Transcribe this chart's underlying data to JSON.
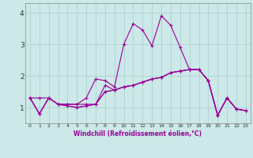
{
  "xlabel": "Windchill (Refroidissement éolien,°C)",
  "x": [
    0,
    1,
    2,
    3,
    4,
    5,
    6,
    7,
    8,
    9,
    10,
    11,
    12,
    13,
    14,
    15,
    16,
    17,
    18,
    19,
    20,
    21,
    22,
    23
  ],
  "lines": [
    [
      1.3,
      0.8,
      1.3,
      1.1,
      1.05,
      1.0,
      1.05,
      1.1,
      1.5,
      1.55,
      1.65,
      1.7,
      1.8,
      1.9,
      1.95,
      2.1,
      2.15,
      2.2,
      2.2,
      1.85,
      0.75,
      1.3,
      0.95,
      0.9
    ],
    [
      1.3,
      1.3,
      1.3,
      1.1,
      1.05,
      1.0,
      1.05,
      1.1,
      1.5,
      1.55,
      1.65,
      1.7,
      1.8,
      1.9,
      1.95,
      2.1,
      2.15,
      2.2,
      2.2,
      1.85,
      0.75,
      1.3,
      0.95,
      0.9
    ],
    [
      1.3,
      0.8,
      1.3,
      1.1,
      1.1,
      1.1,
      1.1,
      1.1,
      1.7,
      1.55,
      1.65,
      1.7,
      1.8,
      1.9,
      1.95,
      2.1,
      2.15,
      2.2,
      2.2,
      1.85,
      0.75,
      1.3,
      0.95,
      0.9
    ],
    [
      1.3,
      0.8,
      1.3,
      1.1,
      1.1,
      1.1,
      1.3,
      1.9,
      1.85,
      1.65,
      3.0,
      3.65,
      3.45,
      2.95,
      3.9,
      3.6,
      2.9,
      2.2,
      2.2,
      1.85,
      0.75,
      1.3,
      0.95,
      0.9
    ]
  ],
  "line_color": "#990099",
  "bg_color": "#cce8e8",
  "grid_color": "#aacccc",
  "ylim": [
    0.5,
    4.3
  ],
  "yticks": [
    1,
    2,
    3,
    4
  ],
  "xticks": [
    0,
    1,
    2,
    3,
    4,
    5,
    6,
    7,
    8,
    9,
    10,
    11,
    12,
    13,
    14,
    15,
    16,
    17,
    18,
    19,
    20,
    21,
    22,
    23
  ],
  "marker": "+",
  "linewidth": 0.8,
  "marker_size": 3,
  "marker_edge_width": 0.8
}
